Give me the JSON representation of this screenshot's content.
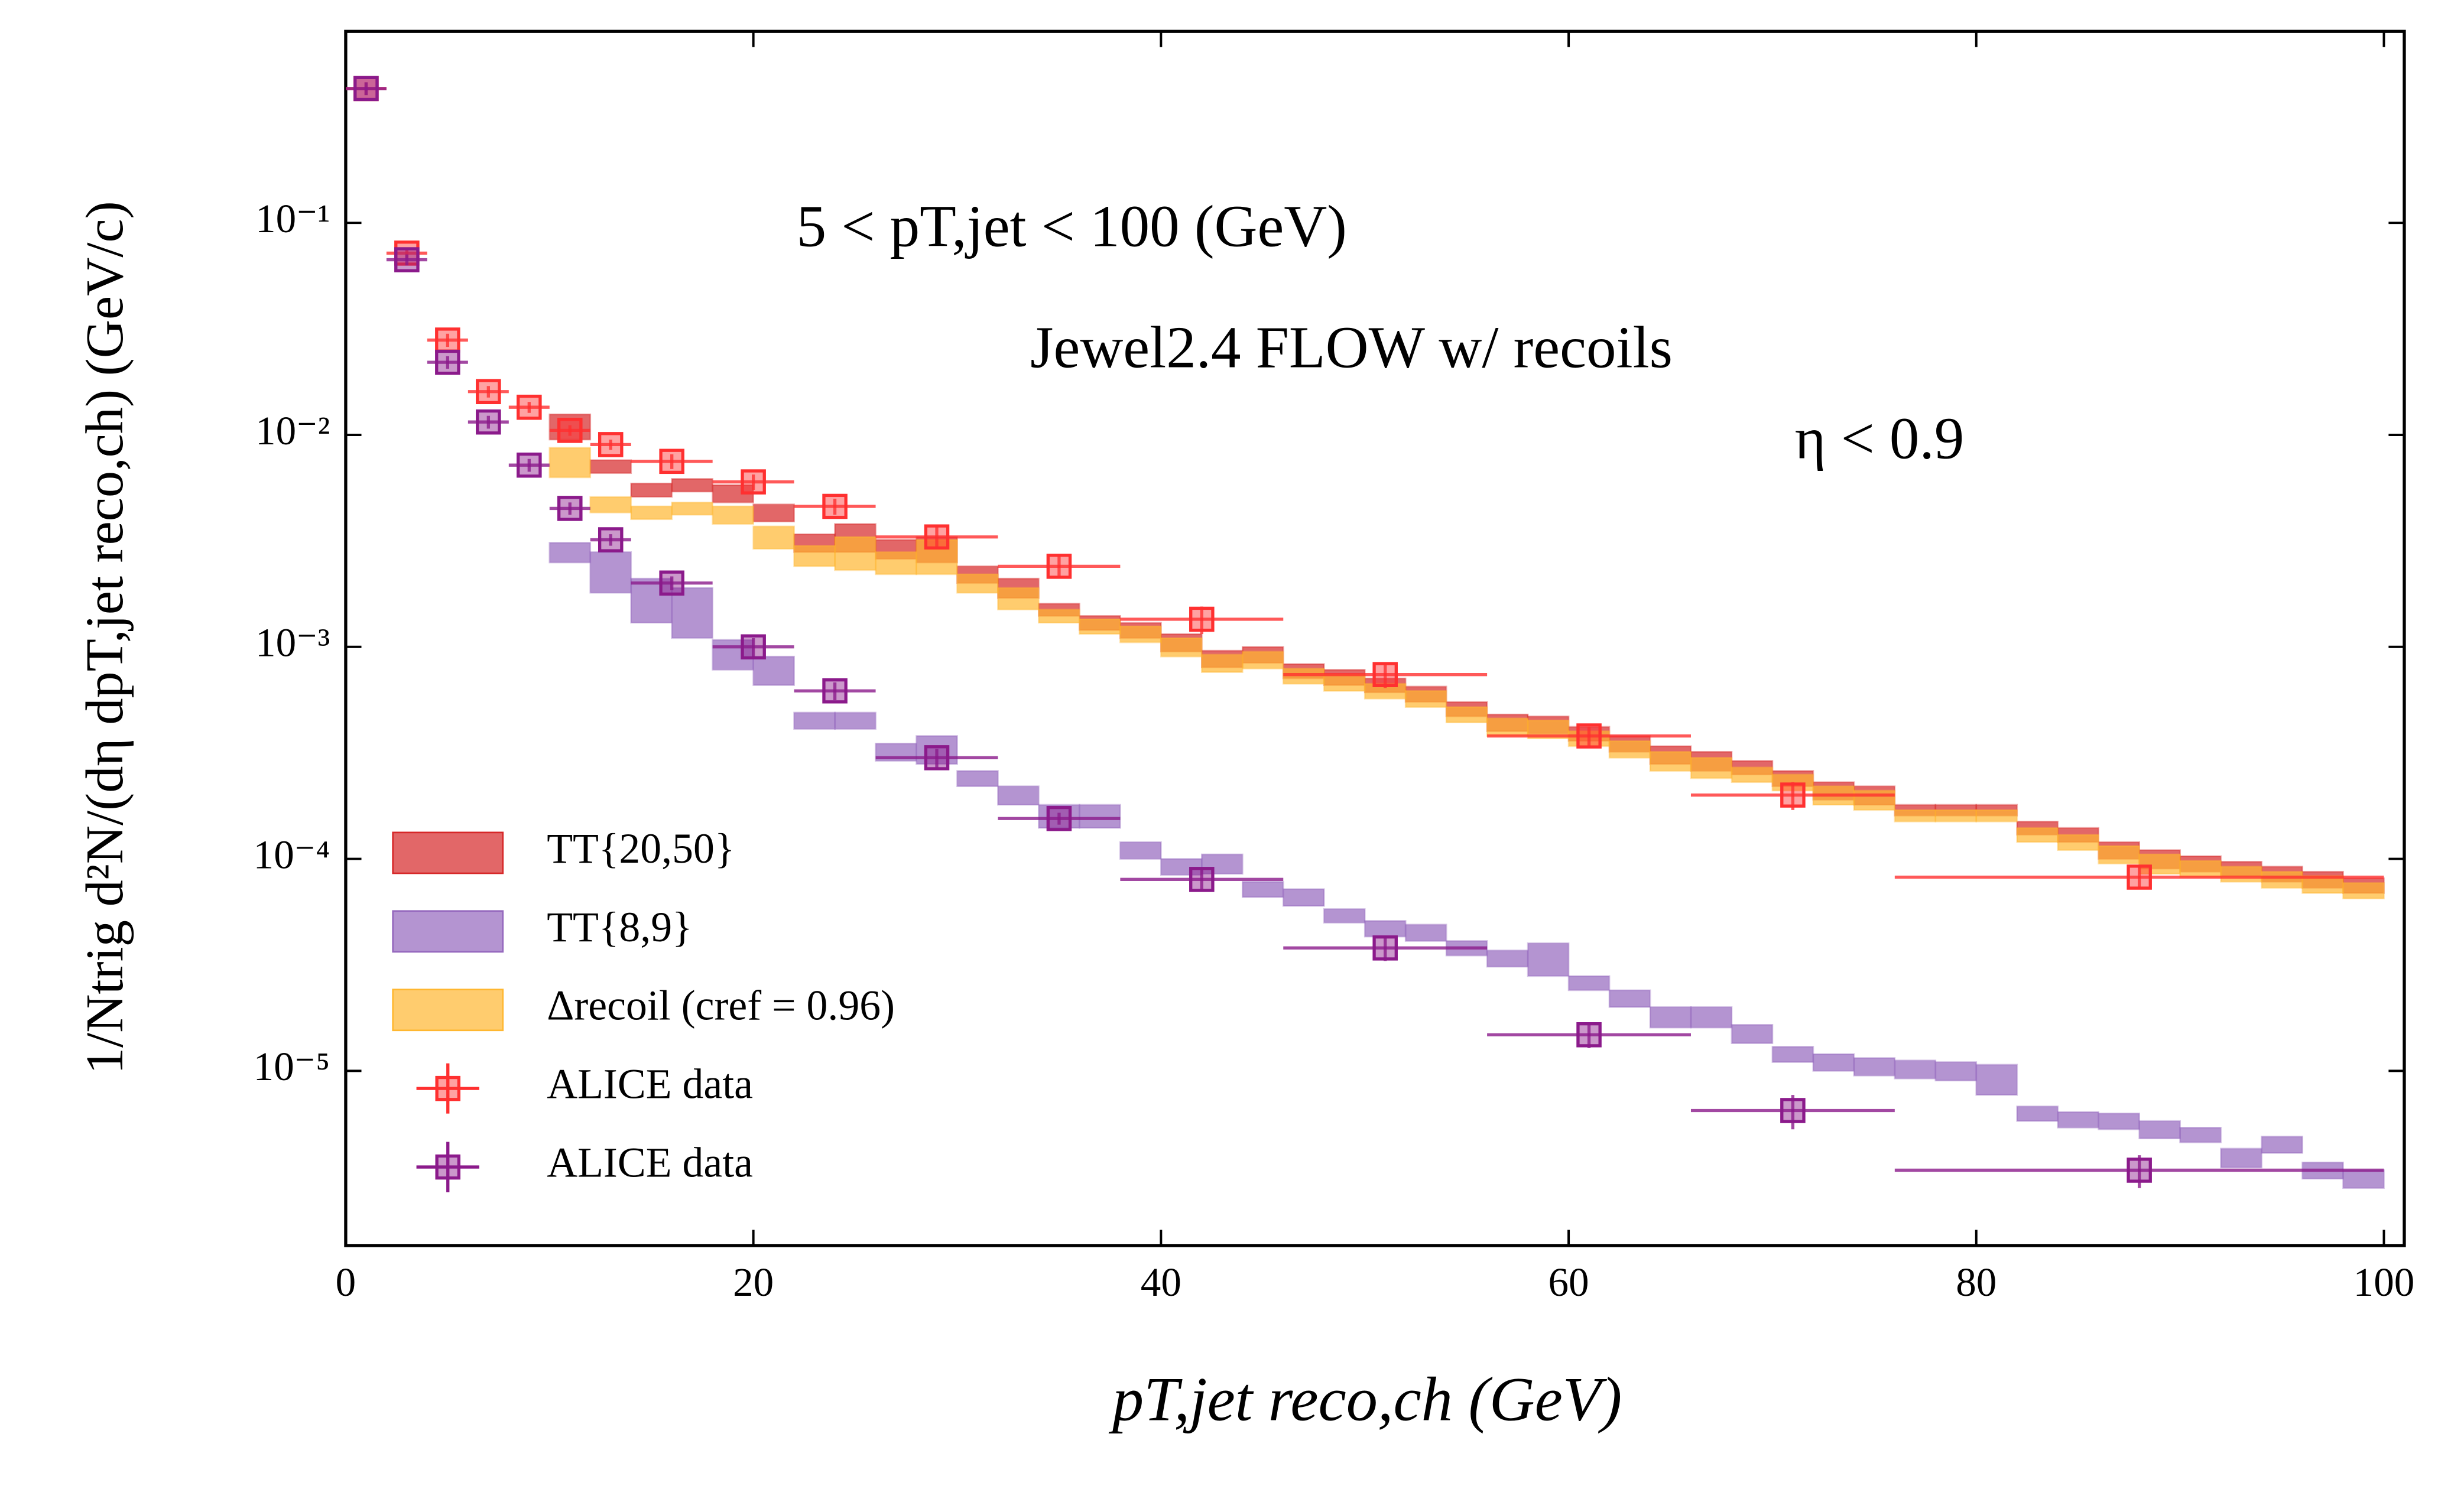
{
  "chart_data": {
    "type": "box-errorbar",
    "xlabel": "pT,jet reco,ch  (GeV)",
    "ylabel": "1/Ntrig d²N/(dη dpT,jet reco,ch)  (GeV/c)",
    "annotations": [
      "5 < pT,jet < 100 (GeV)",
      "Jewel2.4 FLOW w/ recoils",
      "η < 0.9"
    ],
    "xlim": [
      0,
      101
    ],
    "ylim": [
      1.5e-06,
      0.8
    ],
    "yscale": "log",
    "xticks": [
      0,
      20,
      40,
      60,
      80,
      100
    ],
    "yticks": [
      {
        "value": 1e-05,
        "label": "10⁻⁵"
      },
      {
        "value": 0.0001,
        "label": "10⁻⁴"
      },
      {
        "value": 0.001,
        "label": "10⁻³"
      },
      {
        "value": 0.01,
        "label": "10⁻²"
      },
      {
        "value": 0.1,
        "label": "10⁻¹"
      }
    ],
    "grid": false,
    "legend": "lower left",
    "series": [
      {
        "name": "TT{20,50}",
        "kind": "box",
        "color": "#d62728",
        "bin_width": 2,
        "x": [
          11,
          13,
          15,
          17,
          19,
          21,
          23,
          25,
          27,
          29,
          31,
          33,
          35,
          37,
          39,
          41,
          43,
          45,
          47,
          49,
          51,
          53,
          55,
          57,
          59,
          61,
          63,
          65,
          67,
          69,
          71,
          73,
          75,
          77,
          79,
          81,
          83,
          85,
          87,
          89,
          91,
          93,
          95,
          97,
          99
        ],
        "values": [
          0.011,
          0.0071,
          0.0055,
          0.0058,
          0.0053,
          0.0043,
          0.0031,
          0.0033,
          0.0029,
          0.0029,
          0.0022,
          0.0019,
          0.0015,
          0.0013,
          0.0012,
          0.00105,
          0.00088,
          0.00092,
          0.00077,
          0.00072,
          0.00066,
          0.0006,
          0.00051,
          0.00044,
          0.00043,
          0.00039,
          0.00035,
          0.00031,
          0.00029,
          0.00027,
          0.00024,
          0.00021,
          0.0002,
          0.00017,
          0.00017,
          0.00017,
          0.00014,
          0.00013,
          0.00011,
          0.0001,
          9.5e-05,
          9e-05,
          8.5e-05,
          8e-05,
          7.5e-05
        ],
        "errors": [
          0.0015,
          0.0005,
          0.0004,
          0.0004,
          0.0005,
          0.0004,
          0.0003,
          0.0005,
          0.0003,
          0.0004,
          0.0002,
          0.0002,
          0.0001,
          0.0001,
          0.0001,
          0.0001,
          8e-05,
          8e-05,
          6e-05,
          6e-05,
          5e-05,
          5e-05,
          4e-05,
          4e-05,
          4e-05,
          3e-05,
          3e-05,
          3e-05,
          3e-05,
          2e-05,
          2e-05,
          2e-05,
          2e-05,
          1e-05,
          1e-05,
          1e-05,
          1e-05,
          1e-05,
          1e-05,
          1e-05,
          8e-06,
          7e-06,
          7e-06,
          7e-06,
          6e-06
        ]
      },
      {
        "name": "TT{8,9}",
        "kind": "box",
        "color": "#9467bd",
        "bin_width": 2,
        "x": [
          11,
          13,
          15,
          17,
          19,
          21,
          23,
          25,
          27,
          29,
          31,
          33,
          35,
          37,
          39,
          41,
          43,
          45,
          47,
          49,
          51,
          53,
          55,
          57,
          59,
          61,
          63,
          65,
          67,
          69,
          71,
          73,
          75,
          77,
          79,
          81,
          83,
          85,
          87,
          89,
          91,
          93,
          95,
          97,
          99
        ],
        "values": [
          0.0028,
          0.0023,
          0.0017,
          0.0015,
          0.00093,
          0.00078,
          0.00045,
          0.00045,
          0.00032,
          0.00033,
          0.00024,
          0.0002,
          0.00016,
          0.00016,
          0.00011,
          9.2e-05,
          9.5e-05,
          7.2e-05,
          6.6e-05,
          5.4e-05,
          4.7e-05,
          4.5e-05,
          3.8e-05,
          3.4e-05,
          3.4e-05,
          2.6e-05,
          2.2e-05,
          1.8e-05,
          1.8e-05,
          1.5e-05,
          1.2e-05,
          1.1e-05,
          1.05e-05,
          1.02e-05,
          1e-05,
          9.2e-06,
          6.3e-06,
          5.9e-06,
          5.8e-06,
          5.3e-06,
          5e-06,
          3.9e-06,
          4.5e-06,
          3.4e-06,
          3.1e-06
        ],
        "errors": [
          0.0003,
          0.0005,
          0.0004,
          0.0004,
          0.00015,
          0.00012,
          4e-05,
          4e-05,
          3e-05,
          5e-05,
          2e-05,
          2e-05,
          2e-05,
          2e-05,
          1e-05,
          8e-06,
          1e-05,
          6e-06,
          6e-06,
          4e-06,
          4e-06,
          4e-06,
          3e-06,
          3e-06,
          6e-06,
          2e-06,
          2e-06,
          2e-06,
          2e-06,
          1.5e-06,
          1e-06,
          1e-06,
          1e-06,
          1e-06,
          1e-06,
          1.5e-06,
          5e-07,
          5e-07,
          5e-07,
          5e-07,
          4e-07,
          4e-07,
          4e-07,
          3e-07,
          3e-07
        ]
      },
      {
        "name": "Δrecoil (cref = 0.96)",
        "kind": "box",
        "color": "#ffb730",
        "bin_width": 2,
        "x": [
          11,
          13,
          15,
          17,
          19,
          21,
          23,
          25,
          27,
          29,
          31,
          33,
          35,
          37,
          39,
          41,
          43,
          45,
          47,
          49,
          51,
          53,
          55,
          57,
          59,
          61,
          63,
          65,
          67,
          69,
          71,
          73,
          75,
          77,
          79,
          81,
          83,
          85,
          87,
          89,
          91,
          93,
          95,
          97,
          99
        ],
        "values": [
          0.0075,
          0.0047,
          0.0043,
          0.0045,
          0.0042,
          0.0033,
          0.0027,
          0.0028,
          0.0025,
          0.0027,
          0.002,
          0.0017,
          0.0014,
          0.00125,
          0.00115,
          0.001,
          0.00084,
          0.00087,
          0.00073,
          0.00068,
          0.00062,
          0.00057,
          0.00048,
          0.00042,
          0.00041,
          0.00037,
          0.00033,
          0.00029,
          0.00027,
          0.00025,
          0.00023,
          0.0002,
          0.00019,
          0.00016,
          0.00016,
          0.00016,
          0.00013,
          0.00012,
          0.000105,
          9.5e-05,
          9e-05,
          8.5e-05,
          8e-05,
          7.6e-05,
          7.1e-05
        ],
        "errors": [
          0.0012,
          0.0004,
          0.0003,
          0.0003,
          0.0004,
          0.0004,
          0.0003,
          0.0005,
          0.0003,
          0.0005,
          0.0002,
          0.0002,
          0.0001,
          0.0001,
          0.0001,
          0.0001,
          8e-05,
          8e-05,
          6e-05,
          6e-05,
          5e-05,
          5e-05,
          4e-05,
          4e-05,
          4e-05,
          3e-05,
          3e-05,
          3e-05,
          3e-05,
          2e-05,
          2e-05,
          2e-05,
          2e-05,
          1e-05,
          1e-05,
          1e-05,
          1e-05,
          1e-05,
          1e-05,
          1e-05,
          8e-06,
          7e-06,
          7e-06,
          7e-06,
          6e-06
        ]
      },
      {
        "name": "ALICE data",
        "kind": "points",
        "color": "#ff3030",
        "x": [
          1,
          3,
          5,
          7,
          9,
          11,
          13,
          16,
          20,
          24,
          29,
          35,
          42,
          51,
          61,
          71,
          88
        ],
        "x_errors": [
          1,
          1,
          1,
          1,
          1,
          1,
          1,
          2,
          2,
          2,
          3,
          3,
          4,
          5,
          5,
          5,
          12
        ],
        "values": [
          0.43,
          0.072,
          0.028,
          0.016,
          0.0135,
          0.0105,
          0.009,
          0.0075,
          0.006,
          0.0046,
          0.0033,
          0.0024,
          0.00135,
          0.00074,
          0.00038,
          0.0002,
          8.2e-05
        ],
        "y_errors": [
          0.03,
          0.004,
          0.002,
          0.001,
          0.0008,
          0.0006,
          0.0005,
          0.0006,
          0.0005,
          0.0004,
          0.0004,
          0.0003,
          0.0002,
          0.0001,
          4e-05,
          3e-05,
          1e-05
        ]
      },
      {
        "name": "ALICE data",
        "kind": "points",
        "color": "#8b1a8b",
        "x": [
          1,
          3,
          5,
          7,
          9,
          11,
          13,
          16,
          20,
          24,
          29,
          35,
          42,
          51,
          61,
          71,
          88
        ],
        "x_errors": [
          1,
          1,
          1,
          1,
          1,
          1,
          1,
          2,
          2,
          2,
          3,
          3,
          4,
          5,
          5,
          5,
          12
        ],
        "values": [
          0.43,
          0.067,
          0.022,
          0.0115,
          0.0072,
          0.0045,
          0.0032,
          0.002,
          0.001,
          0.00062,
          0.0003,
          0.000155,
          8e-05,
          3.8e-05,
          1.48e-05,
          6.5e-06,
          3.4e-06
        ],
        "y_errors": [
          0.03,
          0.004,
          0.0015,
          0.0008,
          0.0005,
          0.0003,
          0.0002,
          0.00015,
          0.0001,
          6e-05,
          3e-05,
          1e-05,
          1e-05,
          5e-06,
          2e-06,
          1.2e-06,
          6e-07
        ]
      }
    ]
  }
}
